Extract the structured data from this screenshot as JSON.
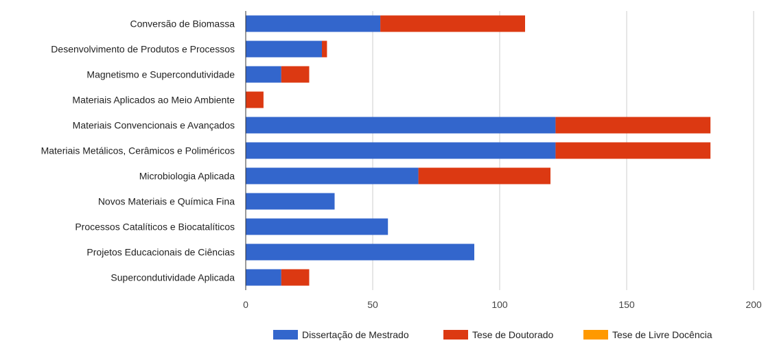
{
  "chart_data": {
    "type": "bar",
    "orientation": "horizontal",
    "stacked": true,
    "categories": [
      "Conversão de Biomassa",
      "Desenvolvimento de Produtos e Processos",
      "Magnetismo e Supercondutividade",
      "Materiais Aplicados ao Meio Ambiente",
      "Materiais Convencionais e Avançados",
      "Materiais Metálicos, Cerâmicos e Poliméricos",
      "Microbiologia Aplicada",
      "Novos Materiais e Química Fina",
      "Processos Catalíticos e Biocatalíticos",
      "Projetos Educacionais de Ciências",
      "Supercondutividade Aplicada"
    ],
    "series": [
      {
        "name": "Dissertação de Mestrado",
        "color": "#3366cc",
        "values": [
          53,
          30,
          14,
          0,
          122,
          122,
          68,
          35,
          56,
          90,
          14
        ]
      },
      {
        "name": "Tese de Doutorado",
        "color": "#dc3912",
        "values": [
          57,
          2,
          11,
          7,
          61,
          61,
          52,
          0,
          0,
          0,
          11
        ]
      },
      {
        "name": "Tese de Livre Docência",
        "color": "#ff9900",
        "values": [
          0,
          0,
          0,
          0,
          0,
          0,
          0,
          0,
          0,
          0,
          0
        ]
      }
    ],
    "xlim": [
      0,
      200
    ],
    "xticks": [
      0,
      50,
      100,
      150,
      200
    ],
    "grid": true,
    "legend_position": "bottom",
    "title": "",
    "xlabel": "",
    "ylabel": ""
  }
}
